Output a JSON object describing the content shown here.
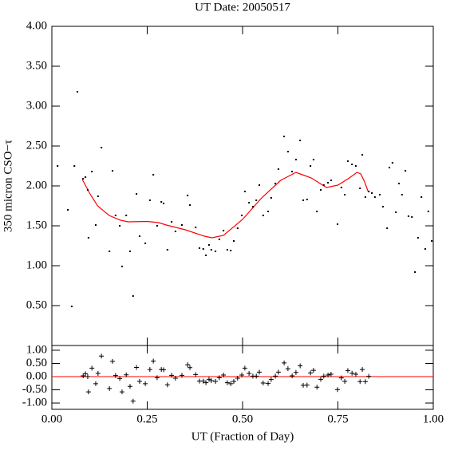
{
  "chart_data": [
    {
      "type": "scatter",
      "title": "UT Date: 20050517",
      "ylabel": "350 micron CSO−τ",
      "xlim": [
        0,
        1
      ],
      "xticks": [
        0,
        0.25,
        0.5,
        0.75,
        1
      ],
      "ylim": [
        0,
        4
      ],
      "yticks": [
        {
          "value": 0.5,
          "label": "0.50"
        },
        {
          "value": 1,
          "label": "1.00"
        },
        {
          "value": 1.5,
          "label": "1.50"
        },
        {
          "value": 2,
          "label": "2.00"
        },
        {
          "value": 2.5,
          "label": "2.50"
        },
        {
          "value": 3,
          "label": "3.00"
        },
        {
          "value": 3.5,
          "label": "3.50"
        },
        {
          "value": 4,
          "label": "4.00"
        }
      ],
      "color": "#000000",
      "x": [
        0.015,
        0.042,
        0.052,
        0.059,
        0.067,
        0.082,
        0.088,
        0.094,
        0.096,
        0.105,
        0.115,
        0.121,
        0.13,
        0.151,
        0.159,
        0.167,
        0.178,
        0.184,
        0.195,
        0.205,
        0.213,
        0.222,
        0.23,
        0.245,
        0.257,
        0.266,
        0.276,
        0.287,
        0.293,
        0.303,
        0.314,
        0.324,
        0.341,
        0.356,
        0.362,
        0.377,
        0.387,
        0.397,
        0.404,
        0.412,
        0.418,
        0.429,
        0.439,
        0.45,
        0.46,
        0.469,
        0.477,
        0.487,
        0.498,
        0.506,
        0.517,
        0.527,
        0.536,
        0.544,
        0.554,
        0.567,
        0.575,
        0.586,
        0.594,
        0.609,
        0.619,
        0.63,
        0.64,
        0.651,
        0.659,
        0.669,
        0.678,
        0.686,
        0.695,
        0.705,
        0.713,
        0.724,
        0.732,
        0.749,
        0.759,
        0.768,
        0.776,
        0.787,
        0.797,
        0.808,
        0.814,
        0.822,
        0.831,
        0.839,
        0.847,
        0.86,
        0.868,
        0.879,
        0.885,
        0.893,
        0.902,
        0.91,
        0.918,
        0.927,
        0.935,
        0.944,
        0.952,
        0.96,
        0.969,
        0.979,
        0.987,
        0.996
      ],
      "values": [
        2.25,
        1.7,
        0.49,
        2.25,
        3.18,
        2.09,
        2.11,
        1.95,
        1.35,
        2.18,
        1.51,
        1.87,
        2.48,
        1.18,
        2.19,
        1.63,
        1.5,
        0.99,
        1.63,
        1.18,
        0.62,
        1.9,
        1.37,
        1.28,
        1.82,
        2.14,
        1.5,
        1.8,
        1.78,
        1.2,
        1.55,
        1.43,
        1.51,
        1.88,
        1.76,
        1.48,
        1.22,
        1.21,
        1.13,
        1.26,
        1.2,
        1.18,
        1.33,
        1.44,
        1.2,
        1.19,
        1.31,
        1.47,
        1.63,
        1.93,
        1.79,
        1.74,
        1.82,
        2.01,
        1.63,
        1.68,
        1.85,
        2.03,
        2.21,
        2.62,
        2.43,
        2.18,
        2.33,
        2.57,
        1.82,
        1.83,
        2.25,
        2.33,
        1.68,
        1.95,
        2.01,
        2.04,
        2.07,
        1.52,
        1.98,
        1.89,
        2.31,
        2.27,
        2.25,
        1.97,
        2.39,
        1.86,
        1.93,
        1.91,
        1.86,
        1.89,
        1.74,
        1.47,
        2.23,
        2.29,
        1.67,
        2.03,
        1.89,
        2.19,
        1.62,
        1.61,
        0.92,
        1.35,
        1.86,
        1.21,
        1.68,
        1.31
      ],
      "fit": {
        "color": "#ff0000",
        "x": [
          0.08,
          0.1,
          0.12,
          0.15,
          0.18,
          0.2,
          0.25,
          0.28,
          0.3,
          0.35,
          0.4,
          0.42,
          0.45,
          0.5,
          0.55,
          0.6,
          0.64,
          0.68,
          0.72,
          0.75,
          0.78,
          0.8,
          0.81,
          0.82,
          0.83
        ],
        "values": [
          2.08,
          1.9,
          1.75,
          1.63,
          1.57,
          1.55,
          1.555,
          1.54,
          1.51,
          1.45,
          1.37,
          1.35,
          1.38,
          1.58,
          1.85,
          2.07,
          2.17,
          2.1,
          1.98,
          2.01,
          2.1,
          2.17,
          2.15,
          2.05,
          1.92
        ]
      }
    },
    {
      "type": "scatter",
      "marker": "plus",
      "xlabel": "UT (Fraction of Day)",
      "xlim": [
        0,
        1
      ],
      "xticks": [
        {
          "value": 0,
          "label": "0.00"
        },
        {
          "value": 0.25,
          "label": "0.25"
        },
        {
          "value": 0.5,
          "label": "0.50"
        },
        {
          "value": 0.75,
          "label": "0.75"
        },
        {
          "value": 1,
          "label": "1.00"
        }
      ],
      "ylim": [
        -1.24,
        1.18
      ],
      "yticks": [
        {
          "value": -1,
          "label": "-1.00"
        },
        {
          "value": -0.5,
          "label": "-0.50"
        },
        {
          "value": 0,
          "label": "0.00"
        },
        {
          "value": 0.5,
          "label": "0.50"
        },
        {
          "value": 1,
          "label": "1.00"
        }
      ],
      "reference_line": 0,
      "reference_color": "#ff0000",
      "color": "#000000",
      "x": [
        0.082,
        0.088,
        0.094,
        0.096,
        0.105,
        0.115,
        0.121,
        0.13,
        0.151,
        0.159,
        0.167,
        0.178,
        0.184,
        0.195,
        0.205,
        0.213,
        0.222,
        0.23,
        0.245,
        0.257,
        0.266,
        0.276,
        0.287,
        0.293,
        0.303,
        0.314,
        0.324,
        0.341,
        0.356,
        0.362,
        0.377,
        0.387,
        0.397,
        0.404,
        0.412,
        0.418,
        0.429,
        0.439,
        0.45,
        0.46,
        0.469,
        0.477,
        0.487,
        0.498,
        0.506,
        0.517,
        0.527,
        0.536,
        0.544,
        0.554,
        0.567,
        0.575,
        0.586,
        0.594,
        0.609,
        0.619,
        0.63,
        0.64,
        0.651,
        0.659,
        0.669,
        0.678,
        0.686,
        0.695,
        0.705,
        0.713,
        0.724,
        0.732,
        0.749,
        0.759,
        0.768,
        0.776,
        0.787,
        0.797,
        0.808,
        0.814,
        0.822,
        0.831
      ],
      "values": [
        0.03,
        0.11,
        0.0,
        -0.58,
        0.32,
        -0.27,
        0.12,
        0.78,
        -0.45,
        0.58,
        0.04,
        -0.07,
        -0.58,
        0.07,
        -0.37,
        -0.93,
        0.35,
        -0.18,
        -0.27,
        0.27,
        0.59,
        -0.04,
        0.27,
        0.26,
        -0.31,
        0.05,
        -0.06,
        0.05,
        0.45,
        0.34,
        0.08,
        -0.17,
        -0.17,
        -0.23,
        -0.1,
        -0.15,
        -0.18,
        -0.04,
        0.06,
        -0.23,
        -0.27,
        -0.18,
        -0.06,
        0.06,
        0.32,
        0.12,
        0.02,
        0.02,
        0.17,
        -0.24,
        -0.26,
        -0.11,
        0.02,
        0.17,
        0.52,
        0.3,
        0.03,
        0.16,
        0.41,
        -0.33,
        -0.32,
        0.14,
        0.24,
        -0.4,
        -0.1,
        0.02,
        0.06,
        0.09,
        -0.49,
        -0.05,
        -0.18,
        0.23,
        0.13,
        0.09,
        -0.19,
        0.27,
        -0.19,
        0.01
      ]
    }
  ]
}
